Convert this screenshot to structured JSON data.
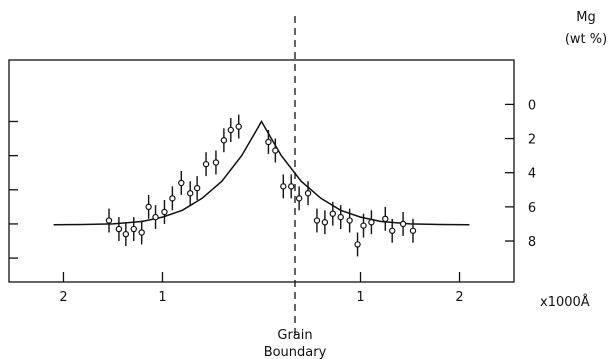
{
  "chart_data": {
    "type": "scatter",
    "title": "",
    "ylabel": "Mg",
    "yunit": "(wt %)",
    "xunit": "x1000Å",
    "annotation": [
      "Grain",
      "Boundary"
    ],
    "x_ticks": [
      {
        "value": -2,
        "label": "2"
      },
      {
        "value": -1,
        "label": "1"
      },
      {
        "value": 1,
        "label": "1"
      },
      {
        "value": 2,
        "label": "2"
      }
    ],
    "y_ticks": [
      0,
      2,
      4,
      6,
      8
    ],
    "xlim": [
      -2.55,
      2.55
    ],
    "ylim": [
      10.4,
      -2.6
    ],
    "y_reversed": true,
    "grid": false,
    "series": [
      {
        "kind": "points_with_error",
        "x": [
          -1.54,
          -1.44,
          -1.37,
          -1.29,
          -1.21,
          -1.14,
          -1.07,
          -0.98,
          -0.9,
          -0.81,
          -0.72,
          -0.65,
          -0.56,
          -0.46,
          -0.38,
          -0.31,
          -0.23,
          0.07,
          0.14,
          0.22,
          0.3,
          0.38,
          0.47,
          0.56,
          0.64,
          0.72,
          0.8,
          0.89,
          0.97,
          1.03,
          1.11,
          1.25,
          1.32,
          1.43,
          1.53
        ],
        "y": [
          6.8,
          7.3,
          7.6,
          7.3,
          7.5,
          6.0,
          6.6,
          6.3,
          5.5,
          4.6,
          5.2,
          4.9,
          3.5,
          3.4,
          2.1,
          1.5,
          1.3,
          2.2,
          2.7,
          4.8,
          4.8,
          5.5,
          5.2,
          6.8,
          6.9,
          6.4,
          6.6,
          6.8,
          8.2,
          7.1,
          6.9,
          6.7,
          7.4,
          7.0,
          7.4
        ],
        "error": 0.7
      },
      {
        "kind": "fit_line",
        "x": [
          -2.1,
          -1.8,
          -1.5,
          -1.2,
          -1.0,
          -0.8,
          -0.6,
          -0.4,
          -0.2,
          -0.1,
          0.0,
          0.1,
          0.2,
          0.4,
          0.6,
          0.8,
          1.0,
          1.2,
          1.5,
          1.8,
          2.1
        ],
        "y": [
          7.05,
          7.03,
          7.0,
          6.85,
          6.6,
          6.2,
          5.5,
          4.5,
          3.0,
          2.0,
          1.0,
          2.0,
          3.0,
          4.5,
          5.5,
          6.2,
          6.6,
          6.85,
          7.0,
          7.03,
          7.05
        ]
      }
    ]
  }
}
